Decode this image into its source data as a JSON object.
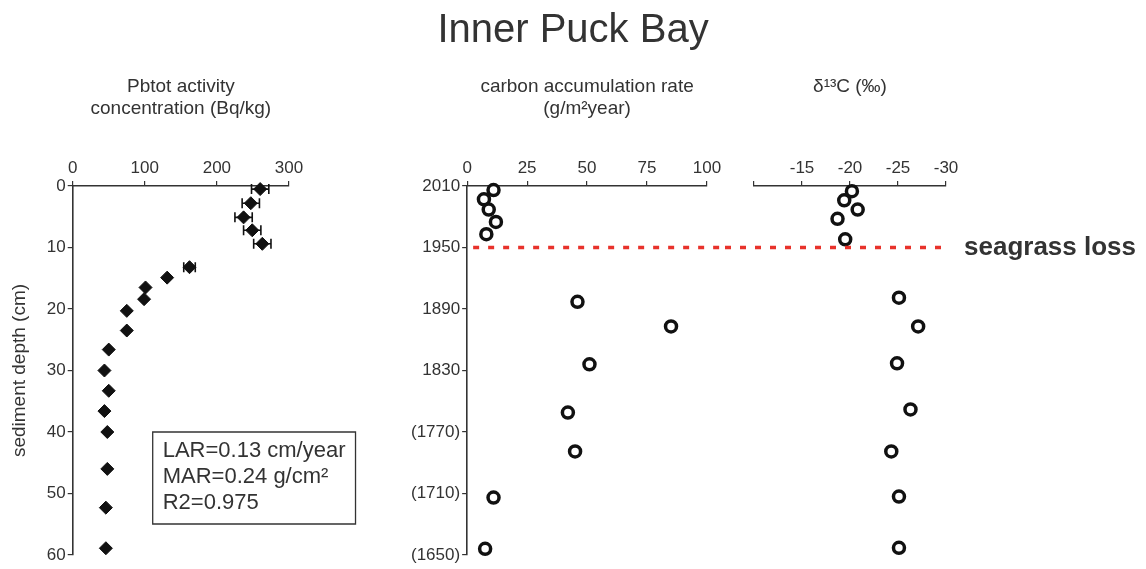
{
  "chart_data": [
    {
      "type": "scatter",
      "xlabel": "Pbtot activity concentration (Bq/kg)",
      "ylabel": "sediment depth (cm)",
      "color": "#111111",
      "marker": "diamond",
      "x": [
        260,
        247,
        237,
        249,
        263,
        162,
        131,
        101,
        99,
        75,
        75,
        50,
        44,
        50,
        44,
        48,
        48,
        46,
        46
      ],
      "values": [
        0.5,
        2.8,
        5.1,
        7.2,
        9.4,
        13.2,
        14.9,
        16.5,
        18.4,
        20.3,
        23.5,
        26.6,
        30,
        33.3,
        36.6,
        40,
        46,
        52.3,
        58.9
      ],
      "xerrors": [
        12,
        12,
        12,
        12,
        12,
        8,
        null,
        null,
        null,
        null,
        null,
        null,
        null,
        null,
        null,
        null,
        null,
        null,
        null
      ],
      "xlim": [
        0,
        300
      ],
      "xticks": [
        0,
        100,
        200,
        300
      ],
      "ylim": [
        60,
        0
      ],
      "yticks": [
        0,
        10,
        20,
        30,
        40,
        50,
        60
      ],
      "annotations": [
        "LAR=0.13 cm/year",
        "MAR=0.24 g/cm²",
        "R2=0.975"
      ]
    },
    {
      "type": "scatter",
      "title": "Inner Puck Bay",
      "xlabel": "carbon accumulation rate (g/m²year)",
      "color": "#111111",
      "marker": "circle",
      "x": [
        11,
        7,
        9,
        12,
        8,
        46,
        85,
        51,
        42,
        45,
        11,
        7.5
      ],
      "values": [
        2006,
        1997,
        1987,
        1975,
        1963,
        1897,
        1873,
        1836,
        1789,
        1751,
        1706,
        1656
      ],
      "xlim": [
        0,
        100
      ],
      "xticks": [
        0,
        25,
        50,
        75,
        100
      ],
      "ylim": [
        1650,
        2010
      ],
      "yticks": [
        2010,
        1950,
        1890,
        1830,
        {
          "value": 1770,
          "label": "(1770)"
        },
        {
          "value": 1710,
          "label": "(1710)"
        },
        {
          "value": 1650,
          "label": "(1650)"
        }
      ],
      "ref_lines": [
        {
          "axis": "y",
          "value": 1950,
          "color": "#e8322b",
          "line_style": "dashed"
        }
      ]
    },
    {
      "type": "scatter",
      "xlabel": "δ¹³C (‰)",
      "color": "#111111",
      "marker": "circle",
      "x": [
        -20.2,
        -19.4,
        -20.8,
        -18.7,
        -19.5,
        -25.1,
        -27.1,
        -24.9,
        -26.3,
        -24.3,
        -25.1,
        -25.1
      ],
      "values": [
        2005,
        1996,
        1987,
        1978,
        1958,
        1901,
        1873,
        1837,
        1792,
        1751,
        1707,
        1657
      ],
      "xlim": [
        -10,
        -30
      ],
      "xticks": [
        {
          "value": -10,
          "label": null
        },
        -15,
        -20,
        -25,
        -30
      ],
      "ylim": [
        1650,
        2010
      ],
      "yticks": [
        2010,
        1950,
        1890,
        1830,
        1770,
        1710,
        1650
      ],
      "tick_labels": "x",
      "ref_lines": [
        {
          "axis": "y",
          "value": 1950,
          "label": "seagrass loss",
          "color": "#e8322b",
          "line_style": "dashed"
        }
      ]
    }
  ]
}
